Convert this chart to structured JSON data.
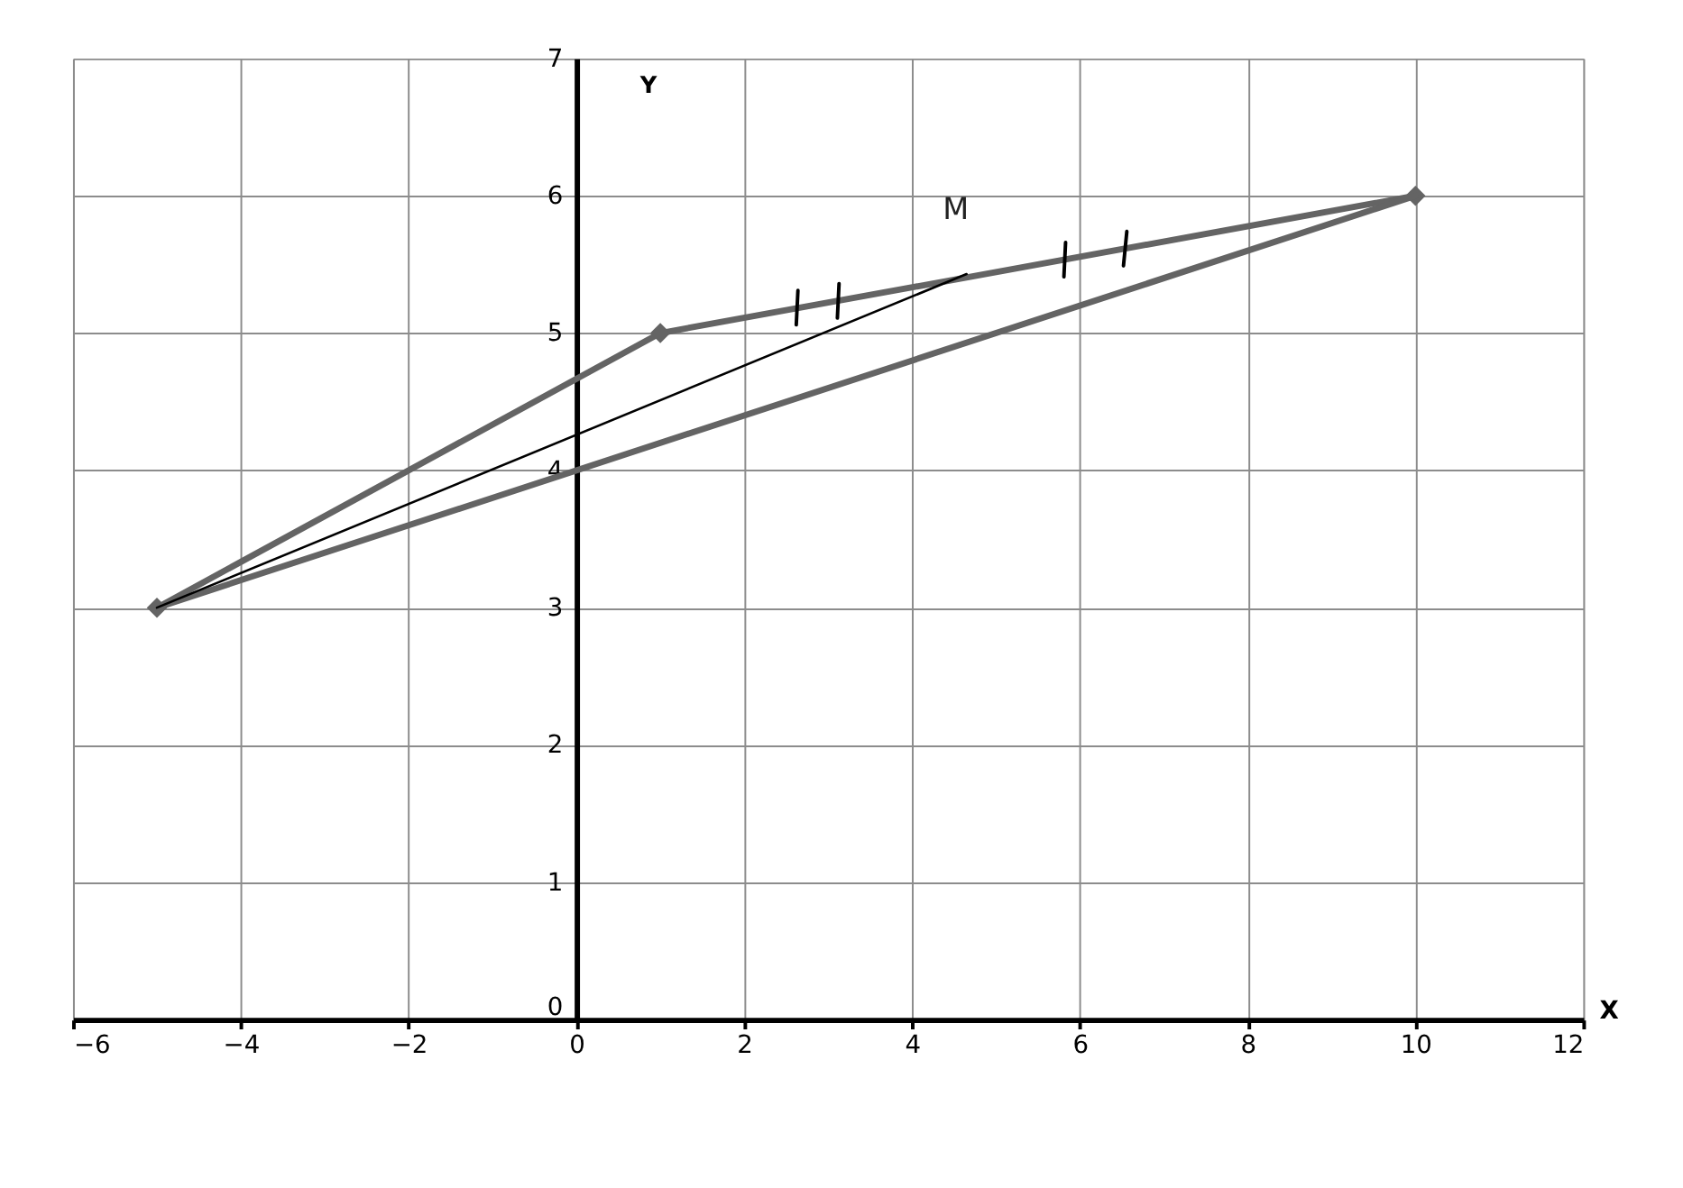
{
  "chart_data": {
    "type": "line",
    "xlabel": "X",
    "ylabel": "Y",
    "xlim": [
      -6,
      12
    ],
    "xticks": [
      -6,
      -4,
      -2,
      0,
      2,
      4,
      6,
      8,
      10,
      12
    ],
    "ylim": [
      0,
      7
    ],
    "yticks": [
      0,
      1,
      2,
      3,
      4,
      5,
      6,
      7
    ],
    "grid": true,
    "legend": false,
    "series": [
      {
        "color": "#646464",
        "x": [
          -5,
          1,
          10
        ],
        "values": [
          3,
          5,
          6
        ],
        "marker": "diamond"
      },
      {
        "color": "#646464",
        "x": [
          -5,
          10
        ],
        "values": [
          3,
          6
        ]
      },
      {
        "color": "#000000",
        "x": [
          -5,
          4.65
        ],
        "values": [
          3,
          5.43
        ]
      },
      {
        "color": "#000000",
        "x": [
          2.62,
          2.64
        ],
        "values": [
          5.06,
          5.31
        ]
      },
      {
        "color": "#000000",
        "x": [
          3.11,
          3.13
        ],
        "values": [
          5.11,
          5.36
        ]
      },
      {
        "color": "#000000",
        "x": [
          5.81,
          5.83
        ],
        "values": [
          5.41,
          5.66
        ]
      },
      {
        "color": "#000000",
        "x": [
          6.52,
          6.56
        ],
        "values": [
          5.49,
          5.74
        ]
      }
    ],
    "annotations": [
      {
        "text": "M",
        "x": 4.65,
        "y": 5.43
      }
    ]
  }
}
